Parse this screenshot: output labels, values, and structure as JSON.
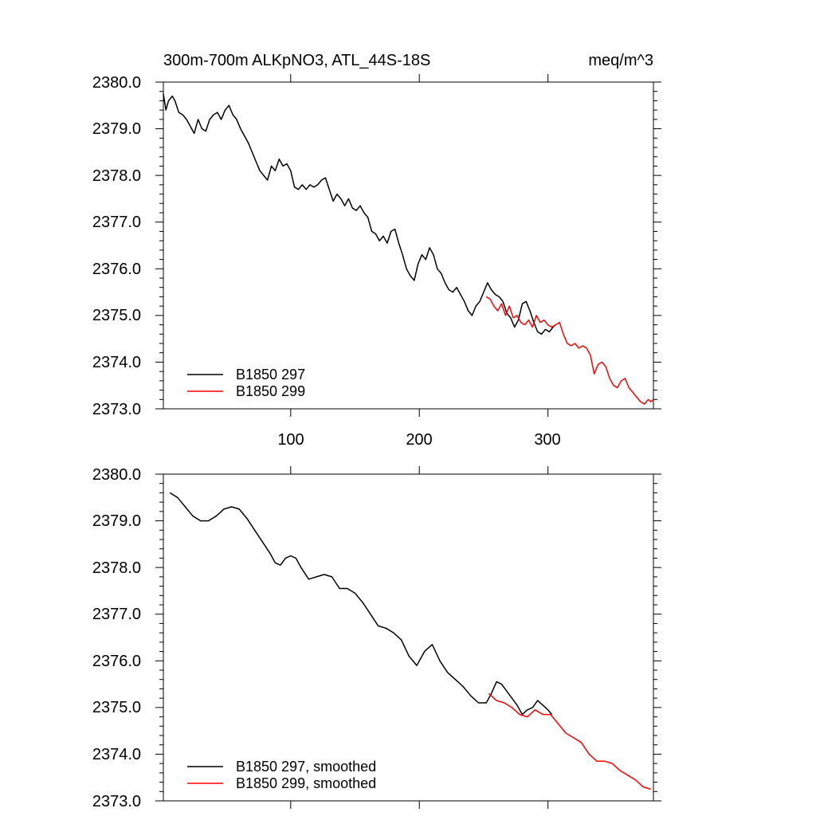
{
  "chart_data": [
    {
      "type": "line",
      "title": "300m-700m ALKpNO3, ATL_44S-18S",
      "units": "meq/m^3",
      "xlim": [
        1,
        382
      ],
      "ylim": [
        2373.0,
        2380.0
      ],
      "x_tick_labels": [
        "100",
        "200",
        "300"
      ],
      "y_tick_labels": [
        "2373.0",
        "2374.0",
        "2375.0",
        "2376.0",
        "2377.0",
        "2378.0",
        "2379.0",
        "2380.0"
      ],
      "grid": false,
      "legend_position": "bottom-left",
      "series": [
        {
          "name": "B1850 297",
          "color": "#000000",
          "x": [
            1,
            3,
            5,
            8,
            10,
            13,
            16,
            19,
            22,
            25,
            28,
            31,
            34,
            37,
            40,
            43,
            46,
            49,
            52,
            55,
            58,
            61,
            64,
            67,
            70,
            73,
            76,
            79,
            82,
            85,
            88,
            91,
            94,
            97,
            100,
            103,
            106,
            109,
            112,
            115,
            118,
            121,
            124,
            127,
            130,
            133,
            136,
            139,
            142,
            145,
            148,
            151,
            154,
            157,
            160,
            163,
            166,
            169,
            172,
            175,
            178,
            181,
            184,
            187,
            190,
            193,
            196,
            199,
            202,
            205,
            208,
            211,
            214,
            217,
            220,
            223,
            226,
            229,
            232,
            235,
            238,
            241,
            244,
            247,
            250,
            253,
            256,
            259,
            262,
            265,
            268,
            271,
            274,
            277,
            280,
            283,
            286,
            289,
            292,
            295,
            298,
            301,
            304,
            306
          ],
          "y": [
            2379.75,
            2379.4,
            2379.6,
            2379.7,
            2379.6,
            2379.35,
            2379.3,
            2379.2,
            2379.05,
            2378.9,
            2379.2,
            2379.0,
            2378.95,
            2379.2,
            2379.3,
            2379.35,
            2379.2,
            2379.4,
            2379.5,
            2379.3,
            2379.2,
            2379.0,
            2378.85,
            2378.7,
            2378.5,
            2378.3,
            2378.1,
            2378.0,
            2377.9,
            2378.2,
            2378.1,
            2378.35,
            2378.2,
            2378.25,
            2378.1,
            2377.75,
            2377.7,
            2377.8,
            2377.7,
            2377.8,
            2377.75,
            2377.8,
            2377.9,
            2377.95,
            2377.7,
            2377.45,
            2377.6,
            2377.5,
            2377.35,
            2377.5,
            2377.3,
            2377.25,
            2377.35,
            2377.2,
            2377.1,
            2376.8,
            2376.75,
            2376.6,
            2376.7,
            2376.55,
            2376.8,
            2376.85,
            2376.55,
            2376.3,
            2376.0,
            2375.85,
            2375.75,
            2376.1,
            2376.3,
            2376.2,
            2376.45,
            2376.3,
            2376.0,
            2375.9,
            2375.7,
            2375.55,
            2375.5,
            2375.6,
            2375.45,
            2375.3,
            2375.1,
            2375.0,
            2375.2,
            2375.3,
            2375.5,
            2375.7,
            2375.55,
            2375.45,
            2375.4,
            2375.3,
            2375.05,
            2374.95,
            2374.75,
            2374.9,
            2375.25,
            2375.3,
            2375.1,
            2374.85,
            2374.65,
            2374.6,
            2374.7,
            2374.65,
            2374.75,
            2374.8
          ]
        },
        {
          "name": "B1850 299",
          "color": "#ff0000",
          "x": [
            252,
            255,
            258,
            261,
            264,
            267,
            270,
            273,
            276,
            279,
            282,
            285,
            288,
            291,
            294,
            297,
            300,
            303,
            306,
            309,
            312,
            315,
            318,
            321,
            324,
            327,
            330,
            333,
            336,
            339,
            342,
            345,
            348,
            351,
            354,
            357,
            360,
            363,
            366,
            369,
            372,
            375,
            378,
            380,
            382
          ],
          "y": [
            2375.4,
            2375.35,
            2375.2,
            2375.1,
            2375.25,
            2375.0,
            2375.2,
            2374.95,
            2375.0,
            2374.85,
            2374.8,
            2374.9,
            2374.75,
            2375.0,
            2374.85,
            2374.9,
            2374.8,
            2374.75,
            2374.8,
            2374.85,
            2374.6,
            2374.4,
            2374.35,
            2374.4,
            2374.3,
            2374.35,
            2374.3,
            2374.15,
            2373.75,
            2373.95,
            2374.0,
            2373.9,
            2373.65,
            2373.5,
            2373.45,
            2373.6,
            2373.65,
            2373.45,
            2373.35,
            2373.25,
            2373.15,
            2373.1,
            2373.2,
            2373.15,
            2373.2
          ]
        }
      ]
    },
    {
      "type": "line",
      "xlim": [
        1,
        382
      ],
      "ylim": [
        2373.0,
        2380.0
      ],
      "y_tick_labels": [
        "2373.0",
        "2374.0",
        "2375.0",
        "2376.0",
        "2377.0",
        "2378.0",
        "2379.0",
        "2380.0"
      ],
      "grid": false,
      "legend_position": "bottom-left",
      "series": [
        {
          "name": "B1850 297, smoothed",
          "color": "#000000",
          "x": [
            6,
            12,
            18,
            24,
            30,
            36,
            42,
            48,
            54,
            60,
            66,
            72,
            78,
            84,
            88,
            92,
            96,
            100,
            104,
            108,
            114,
            120,
            126,
            132,
            138,
            144,
            150,
            156,
            162,
            168,
            174,
            180,
            186,
            192,
            198,
            204,
            210,
            216,
            222,
            228,
            234,
            240,
            246,
            252,
            256,
            260,
            264,
            268,
            272,
            276,
            280,
            284,
            288,
            292,
            296,
            300,
            303
          ],
          "y": [
            2379.6,
            2379.5,
            2379.3,
            2379.1,
            2379.0,
            2379.0,
            2379.1,
            2379.25,
            2379.3,
            2379.25,
            2379.05,
            2378.8,
            2378.55,
            2378.3,
            2378.1,
            2378.05,
            2378.2,
            2378.25,
            2378.2,
            2378.0,
            2377.75,
            2377.8,
            2377.85,
            2377.8,
            2377.55,
            2377.55,
            2377.45,
            2377.25,
            2377.0,
            2376.75,
            2376.7,
            2376.6,
            2376.45,
            2376.1,
            2375.9,
            2376.2,
            2376.35,
            2376.0,
            2375.75,
            2375.6,
            2375.45,
            2375.25,
            2375.1,
            2375.1,
            2375.3,
            2375.55,
            2375.5,
            2375.35,
            2375.2,
            2375.05,
            2374.85,
            2374.95,
            2375.0,
            2375.15,
            2375.05,
            2374.95,
            2374.85
          ]
        },
        {
          "name": "B1850 299, smoothed",
          "color": "#ff0000",
          "x": [
            254,
            260,
            266,
            272,
            278,
            284,
            290,
            296,
            302,
            308,
            314,
            320,
            326,
            332,
            338,
            344,
            350,
            356,
            362,
            368,
            374,
            380
          ],
          "y": [
            2375.3,
            2375.15,
            2375.1,
            2375.0,
            2374.85,
            2374.8,
            2374.95,
            2374.85,
            2374.85,
            2374.65,
            2374.45,
            2374.35,
            2374.25,
            2374.0,
            2373.85,
            2373.85,
            2373.8,
            2373.65,
            2373.55,
            2373.45,
            2373.3,
            2373.25
          ]
        }
      ]
    }
  ]
}
